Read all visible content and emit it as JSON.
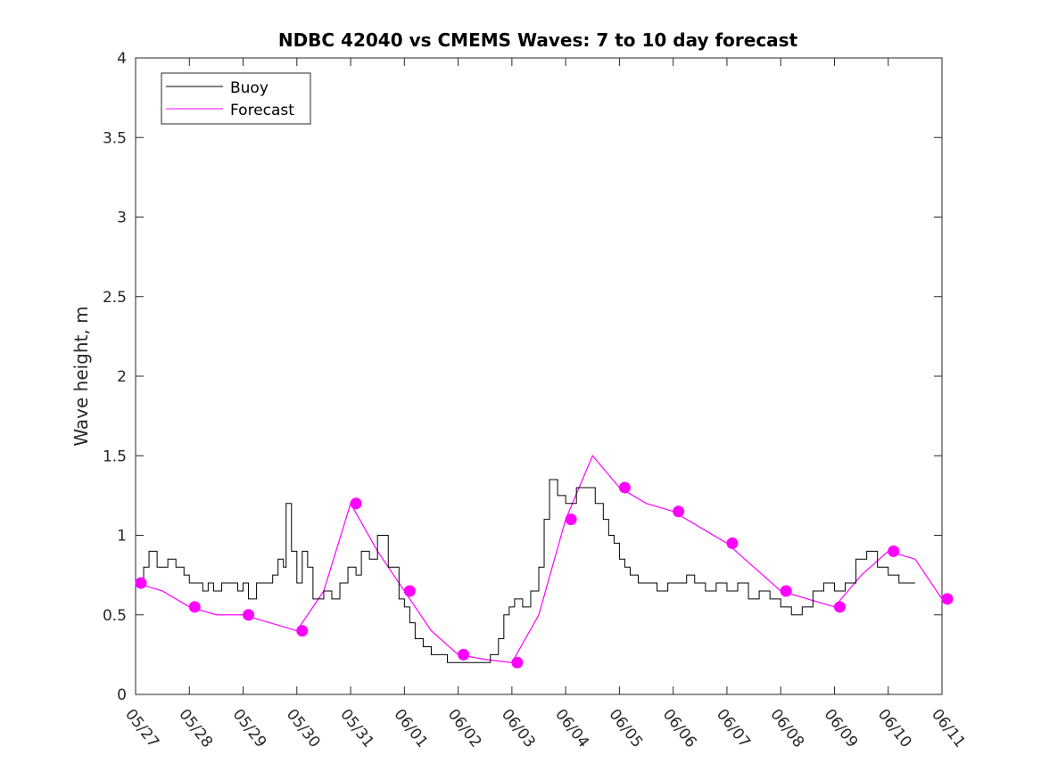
{
  "chart_data": {
    "type": "line",
    "title": "NDBC 42040 vs CMEMS Waves: 7 to 10 day forecast",
    "xlabel": "",
    "ylabel": "Wave height, m",
    "ylim": [
      0,
      4
    ],
    "yticks": [
      "0",
      "0.5",
      "1",
      "1.5",
      "2",
      "2.5",
      "3",
      "3.5",
      "4"
    ],
    "xlim": [
      "05/27",
      "06/11"
    ],
    "xticks": [
      "05/27",
      "05/28",
      "05/29",
      "05/30",
      "05/31",
      "06/01",
      "06/02",
      "06/03",
      "06/04",
      "06/05",
      "06/06",
      "06/07",
      "06/08",
      "06/09",
      "06/10",
      "06/11"
    ],
    "legend": {
      "placement": "top-left",
      "entries": [
        "Buoy",
        "Forecast"
      ]
    },
    "colors": {
      "buoy": "#000000",
      "forecast": "#ff00ff"
    },
    "series": [
      {
        "name": "Buoy",
        "x": [
          0.0,
          0.15,
          0.25,
          0.4,
          0.6,
          0.75,
          0.9,
          1.0,
          1.1,
          1.25,
          1.35,
          1.45,
          1.6,
          1.75,
          1.9,
          2.0,
          2.1,
          2.25,
          2.4,
          2.55,
          2.65,
          2.75,
          2.8,
          2.9,
          3.0,
          3.1,
          3.2,
          3.3,
          3.5,
          3.65,
          3.8,
          3.95,
          4.1,
          4.2,
          4.35,
          4.5,
          4.7,
          4.9,
          5.0,
          5.1,
          5.2,
          5.35,
          5.5,
          5.8,
          6.0,
          6.3,
          6.6,
          6.75,
          6.85,
          6.95,
          7.05,
          7.2,
          7.35,
          7.5,
          7.6,
          7.7,
          7.85,
          8.0,
          8.2,
          8.4,
          8.55,
          8.7,
          8.8,
          8.9,
          9.0,
          9.1,
          9.2,
          9.35,
          9.5,
          9.7,
          9.9,
          10.1,
          10.25,
          10.4,
          10.6,
          10.8,
          11.0,
          11.2,
          11.4,
          11.6,
          11.8,
          12.0,
          12.2,
          12.4,
          12.6,
          12.8,
          13.0,
          13.2,
          13.4,
          13.6,
          13.8,
          14.0,
          14.2,
          14.5
        ],
        "values": [
          0.7,
          0.8,
          0.9,
          0.8,
          0.85,
          0.8,
          0.75,
          0.7,
          0.7,
          0.65,
          0.7,
          0.65,
          0.7,
          0.7,
          0.65,
          0.7,
          0.6,
          0.7,
          0.7,
          0.75,
          0.85,
          0.8,
          1.2,
          0.9,
          0.7,
          0.9,
          0.8,
          0.6,
          0.65,
          0.6,
          0.7,
          0.8,
          0.75,
          0.9,
          0.85,
          1.0,
          0.8,
          0.6,
          0.55,
          0.45,
          0.35,
          0.3,
          0.25,
          0.2,
          0.2,
          0.2,
          0.25,
          0.35,
          0.5,
          0.55,
          0.6,
          0.55,
          0.65,
          0.8,
          1.1,
          1.35,
          1.25,
          1.2,
          1.3,
          1.3,
          1.2,
          1.1,
          1.0,
          0.95,
          0.85,
          0.8,
          0.75,
          0.7,
          0.7,
          0.65,
          0.7,
          0.7,
          0.75,
          0.7,
          0.65,
          0.7,
          0.65,
          0.7,
          0.6,
          0.65,
          0.6,
          0.55,
          0.5,
          0.55,
          0.65,
          0.7,
          0.65,
          0.7,
          0.85,
          0.9,
          0.8,
          0.75,
          0.7,
          0.7
        ]
      },
      {
        "name": "Forecast",
        "x": [
          0.0,
          0.5,
          1.0,
          1.5,
          2.0,
          2.5,
          3.0,
          3.5,
          4.0,
          4.5,
          5.0,
          5.5,
          6.0,
          6.5,
          7.0,
          7.5,
          8.0,
          8.5,
          9.0,
          9.5,
          10.0,
          10.5,
          11.0,
          11.5,
          12.0,
          12.5,
          13.0,
          13.5,
          14.0,
          14.5,
          15.0
        ],
        "values": [
          0.7,
          0.65,
          0.55,
          0.5,
          0.5,
          0.45,
          0.4,
          0.65,
          1.2,
          0.9,
          0.65,
          0.4,
          0.25,
          0.22,
          0.2,
          0.5,
          1.1,
          1.5,
          1.3,
          1.2,
          1.15,
          1.05,
          0.95,
          0.8,
          0.65,
          0.6,
          0.55,
          0.75,
          0.9,
          0.85,
          0.6
        ]
      }
    ]
  }
}
